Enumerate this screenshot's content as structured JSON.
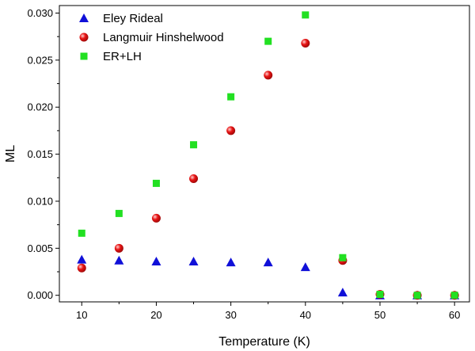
{
  "chart_data": {
    "type": "scatter",
    "xlabel": "Temperature (K)",
    "ylabel": "ML",
    "xlim": [
      7,
      62
    ],
    "ylim": [
      -0.0007,
      0.0308
    ],
    "xticks": [
      10,
      20,
      30,
      40,
      50,
      60
    ],
    "xtick_labels": [
      "10",
      "20",
      "30",
      "40",
      "50",
      "60"
    ],
    "yticks": [
      0.0,
      0.005,
      0.01,
      0.015,
      0.02,
      0.025,
      0.03
    ],
    "ytick_labels": [
      "0.000",
      "0.005",
      "0.010",
      "0.015",
      "0.020",
      "0.025",
      "0.030"
    ],
    "grid": false,
    "legend_position": "top-left",
    "series": [
      {
        "name": "Eley Rideal",
        "marker": "triangle",
        "color": "#1010d8",
        "x": [
          10,
          15,
          20,
          25,
          30,
          35,
          40,
          45,
          50,
          55,
          60
        ],
        "y": [
          0.0038,
          0.0037,
          0.0036,
          0.0036,
          0.0035,
          0.0035,
          0.003,
          0.0003,
          0.0,
          0.0,
          0.0
        ]
      },
      {
        "name": "Langmuir Hinshelwood",
        "marker": "circle",
        "color": "#e81414",
        "x": [
          10,
          15,
          20,
          25,
          30,
          35,
          40,
          45,
          50,
          55,
          60
        ],
        "y": [
          0.0029,
          0.005,
          0.0082,
          0.0124,
          0.0175,
          0.0234,
          0.0268,
          0.0037,
          0.0001,
          0.0,
          0.0
        ]
      },
      {
        "name": "ER+LH",
        "marker": "square",
        "color": "#22e022",
        "x": [
          10,
          15,
          20,
          25,
          30,
          35,
          40,
          45,
          50,
          55,
          60
        ],
        "y": [
          0.0066,
          0.0087,
          0.0119,
          0.016,
          0.0211,
          0.027,
          0.0298,
          0.004,
          0.0001,
          0.0,
          0.0
        ]
      }
    ]
  }
}
